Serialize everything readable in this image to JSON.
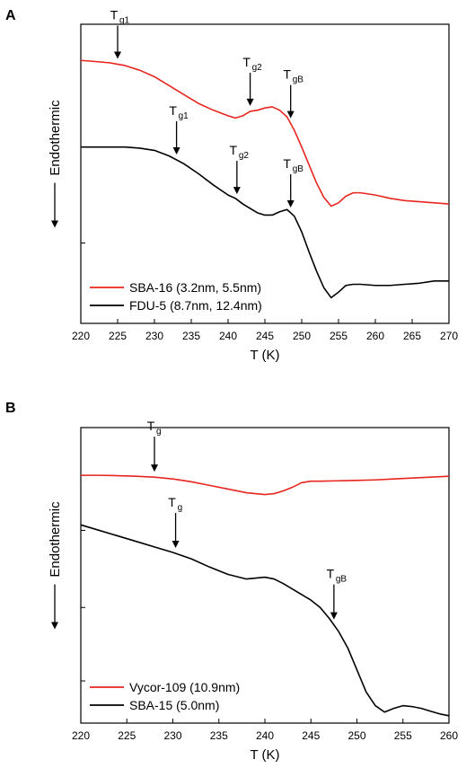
{
  "chart_data": [
    {
      "panel_label": "A",
      "type": "line",
      "xlabel": "T (K)",
      "ylabel": "Endothermic",
      "xlim": [
        220,
        270
      ],
      "xticks": [
        220,
        225,
        230,
        235,
        240,
        245,
        250,
        255,
        260,
        265,
        270
      ],
      "y_tick_labels_shown": false,
      "series": [
        {
          "name": "SBA-16 (3.2nm, 5.5nm)",
          "color": "#e8251f",
          "x": [
            220,
            222,
            224,
            226,
            228,
            230,
            232,
            234,
            236,
            238,
            240,
            241,
            242,
            243,
            244,
            245,
            246,
            247,
            248,
            249,
            250,
            251,
            252,
            253,
            254,
            255,
            256,
            257,
            258,
            260,
            262,
            264,
            266,
            268,
            270
          ],
          "y": [
            -0.42,
            -0.47,
            -0.53,
            -0.65,
            -0.86,
            -1.15,
            -1.55,
            -1.95,
            -2.35,
            -2.65,
            -2.9,
            -3.0,
            -2.9,
            -2.7,
            -2.65,
            -2.55,
            -2.5,
            -2.65,
            -2.95,
            -3.55,
            -4.3,
            -5.1,
            -5.9,
            -6.55,
            -6.95,
            -6.8,
            -6.5,
            -6.35,
            -6.35,
            -6.45,
            -6.6,
            -6.7,
            -6.75,
            -6.8,
            -6.85
          ]
        },
        {
          "name": "FDU-5 (8.7nm, 12.4nm)",
          "color": "#000000",
          "x": [
            220,
            222,
            224,
            226,
            228,
            230,
            232,
            234,
            236,
            238,
            240,
            241,
            242,
            243,
            244,
            245,
            246,
            247,
            248,
            249,
            250,
            251,
            252,
            253,
            254,
            255,
            256,
            257,
            258,
            260,
            262,
            264,
            266,
            268,
            270
          ],
          "y": [
            -4.3,
            -4.3,
            -4.3,
            -4.3,
            -4.35,
            -4.45,
            -4.7,
            -5.05,
            -5.5,
            -6.0,
            -6.45,
            -6.6,
            -6.85,
            -7.05,
            -7.25,
            -7.35,
            -7.35,
            -7.2,
            -7.1,
            -7.4,
            -8.1,
            -9.0,
            -9.85,
            -10.6,
            -11.05,
            -10.8,
            -10.5,
            -10.45,
            -10.45,
            -10.5,
            -10.5,
            -10.45,
            -10.4,
            -10.3,
            -10.3
          ]
        }
      ],
      "annotations": [
        {
          "main": "T",
          "sub": "g1",
          "x": 225,
          "series_index": 0
        },
        {
          "main": "T",
          "sub": "g2",
          "x": 243,
          "series_index": 0
        },
        {
          "main": "T",
          "sub": "gB",
          "x": 248.5,
          "series_index": 0
        },
        {
          "main": "T",
          "sub": "g1",
          "x": 233,
          "series_index": 1
        },
        {
          "main": "T",
          "sub": "g2",
          "x": 241.2,
          "series_index": 1
        },
        {
          "main": "T",
          "sub": "gB",
          "x": 248.5,
          "series_index": 1
        }
      ],
      "legend_position": "bottom-left"
    },
    {
      "panel_label": "B",
      "type": "line",
      "xlabel": "T (K)",
      "ylabel": "Endothermic",
      "xlim": [
        220,
        260
      ],
      "xticks": [
        220,
        225,
        230,
        235,
        240,
        245,
        250,
        255,
        260
      ],
      "y_tick_labels_shown": false,
      "series": [
        {
          "name": "Vycor-109 (10.9nm)",
          "color": "#e8251f",
          "x": [
            220,
            222,
            224,
            226,
            228,
            230,
            232,
            234,
            236,
            238,
            239,
            240,
            241,
            242,
            243,
            244,
            245,
            246,
            248,
            250,
            252,
            254,
            256,
            258,
            260
          ],
          "y": [
            -1.3,
            -1.3,
            -1.32,
            -1.35,
            -1.4,
            -1.5,
            -1.65,
            -1.85,
            -2.05,
            -2.25,
            -2.3,
            -2.35,
            -2.3,
            -2.15,
            -1.95,
            -1.7,
            -1.62,
            -1.62,
            -1.6,
            -1.58,
            -1.55,
            -1.5,
            -1.45,
            -1.4,
            -1.35
          ]
        },
        {
          "name": "SBA-15 (5.0nm)",
          "color": "#000000",
          "x": [
            220,
            222,
            224,
            226,
            228,
            230,
            232,
            234,
            236,
            238,
            239,
            240,
            241,
            242,
            243,
            244,
            245,
            246,
            247,
            248,
            249,
            250,
            251,
            252,
            253,
            254,
            255,
            256,
            257,
            258,
            259,
            260
          ],
          "y": [
            -4.0,
            -4.3,
            -4.6,
            -4.9,
            -5.2,
            -5.5,
            -5.85,
            -6.3,
            -6.7,
            -6.95,
            -6.9,
            -6.85,
            -6.95,
            -7.2,
            -7.5,
            -7.8,
            -8.1,
            -8.5,
            -9.1,
            -9.8,
            -10.7,
            -11.9,
            -13.1,
            -13.85,
            -14.2,
            -14.0,
            -13.85,
            -13.9,
            -14.0,
            -14.15,
            -14.3,
            -14.4
          ]
        }
      ],
      "annotations": [
        {
          "main": "T",
          "sub": "g",
          "x": 228,
          "series_index": 0
        },
        {
          "main": "T",
          "sub": "g",
          "x": 230.3,
          "series_index": 1
        },
        {
          "main": "T",
          "sub": "gB",
          "x": 247.5,
          "series_index": 1
        }
      ],
      "legend_position": "bottom-left"
    }
  ]
}
